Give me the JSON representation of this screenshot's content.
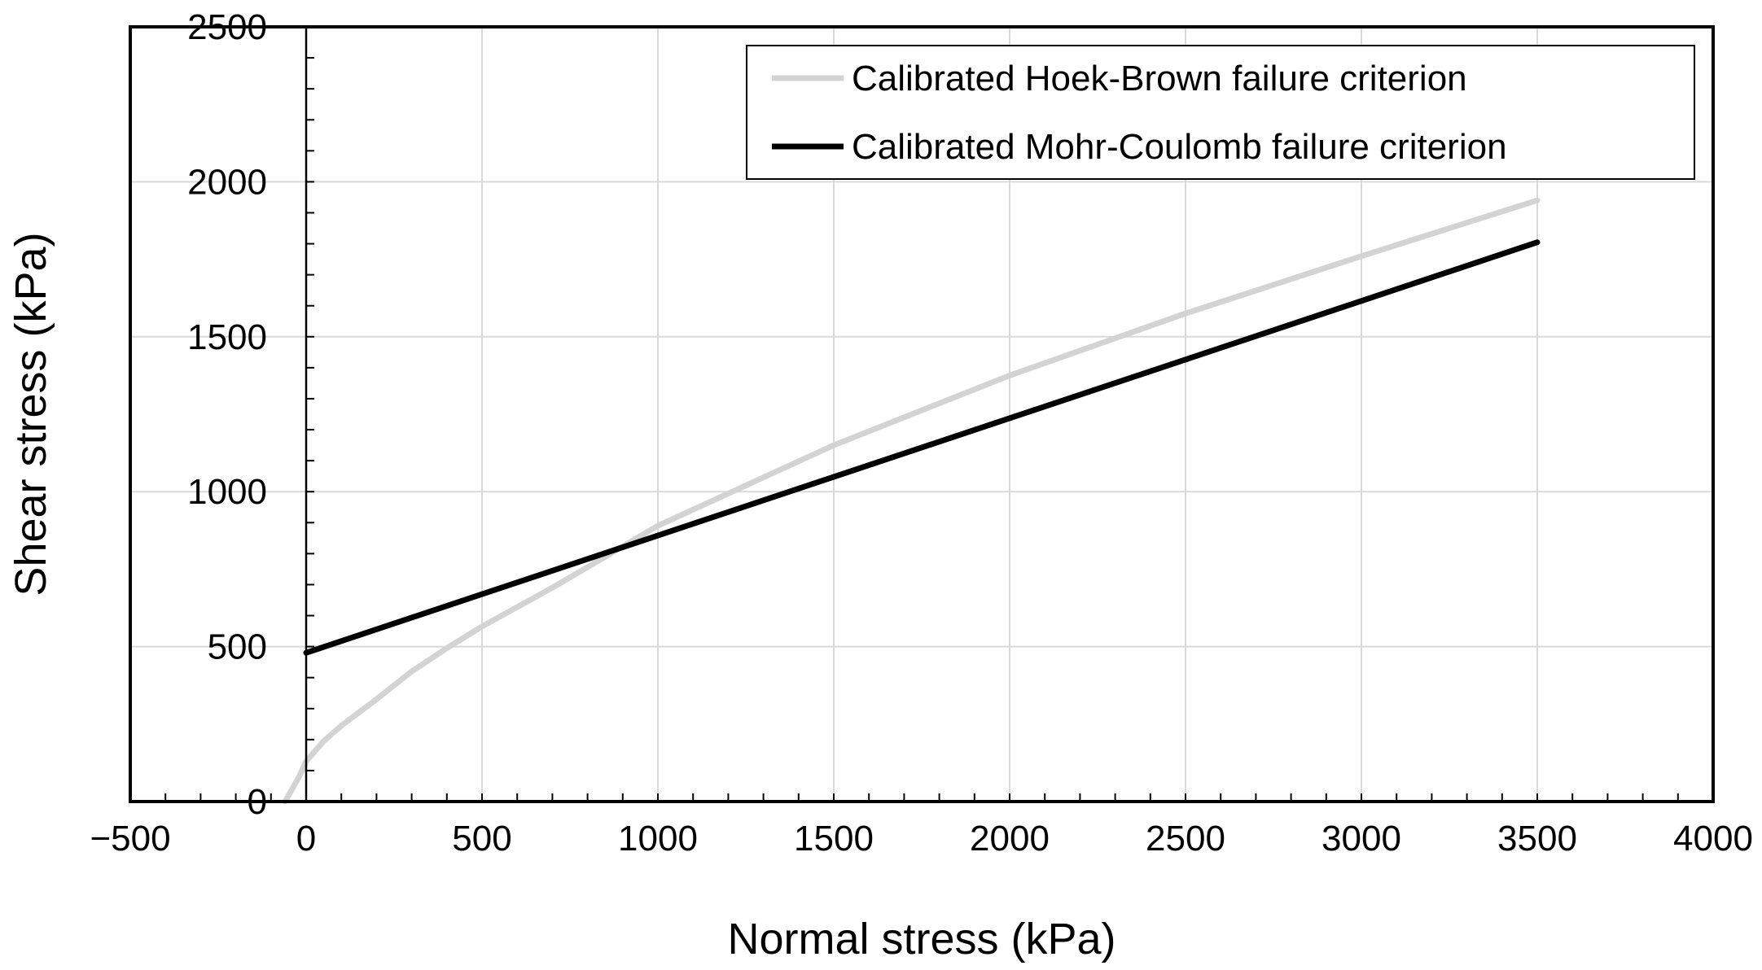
{
  "chart_data": {
    "type": "line",
    "title": "",
    "xlabel": "Normal stress (kPa)",
    "ylabel": "Shear stress (kPa)",
    "xlim": [
      -500,
      4000
    ],
    "ylim": [
      0,
      2500
    ],
    "x_ticks": [
      -500,
      0,
      500,
      1000,
      1500,
      2000,
      2500,
      3000,
      3500,
      4000
    ],
    "x_tick_labels": [
      "−500",
      "0",
      "500",
      "1000",
      "1500",
      "2000",
      "2500",
      "3000",
      "3500",
      "4000"
    ],
    "y_ticks": [
      0,
      500,
      1000,
      1500,
      2000,
      2500
    ],
    "y_tick_labels": [
      "0",
      "500",
      "1000",
      "1500",
      "2000",
      "2500"
    ],
    "grid": true,
    "legend_position": "top-right",
    "series": [
      {
        "name": "Calibrated Hoek-Brown failure criterion",
        "color": "#d3d3d3",
        "x": [
          -60,
          -40,
          -20,
          0,
          50,
          100,
          200,
          300,
          400,
          500,
          700,
          1000,
          1250,
          1500,
          2000,
          2500,
          3000,
          3500
        ],
        "y": [
          0,
          40,
          80,
          130,
          195,
          245,
          330,
          420,
          495,
          565,
          690,
          890,
          1020,
          1150,
          1375,
          1575,
          1760,
          1940
        ]
      },
      {
        "name": "Calibrated Mohr-Coulomb failure criterion",
        "color": "#000000",
        "x": [
          0,
          3500
        ],
        "y": [
          480,
          1805
        ]
      }
    ]
  }
}
